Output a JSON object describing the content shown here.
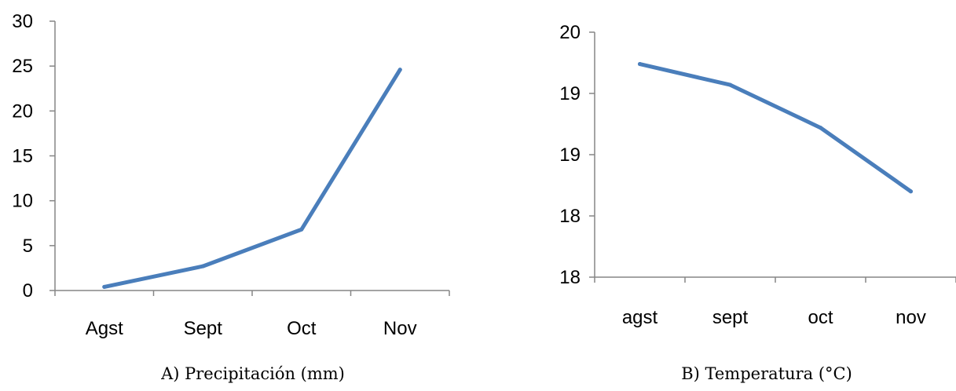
{
  "chart_data": [
    {
      "type": "line",
      "categories": [
        "Agst",
        "Sept",
        "Oct",
        "Nov"
      ],
      "values": [
        0.4,
        2.7,
        6.8,
        24.6
      ],
      "ylim": [
        0,
        30
      ],
      "yticks": [
        "0",
        "5",
        "10",
        "15",
        "20",
        "25",
        "30"
      ],
      "caption": "A) Precipitación (mm)",
      "color": "#4a7ebb",
      "grid": false
    },
    {
      "type": "line",
      "categories": [
        "agst",
        "sept",
        "oct",
        "nov"
      ],
      "values": [
        19.74,
        19.57,
        19.22,
        18.7
      ],
      "ylim": [
        18,
        20
      ],
      "yticks": [
        "18",
        "18",
        "19",
        "19",
        "20"
      ],
      "caption": "B) Temperatura (°C)",
      "color": "#4a7ebb",
      "grid": false
    }
  ]
}
